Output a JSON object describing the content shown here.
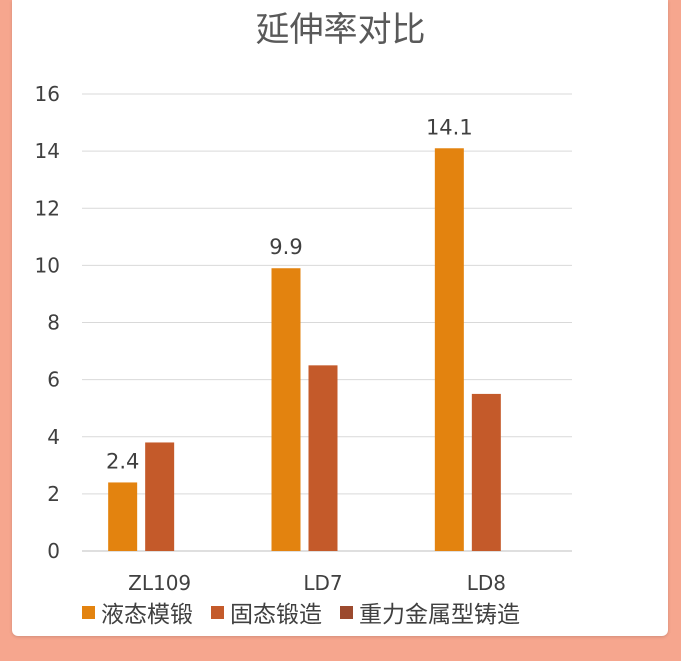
{
  "chart_data": {
    "type": "bar",
    "title": "延伸率对比",
    "categories": [
      "ZL109",
      "LD7",
      "LD8"
    ],
    "series": [
      {
        "name": "液态模锻",
        "color": "#e3830f",
        "values": [
          2.4,
          9.9,
          14.1
        ],
        "data_labels": [
          "2.4",
          "9.9",
          "14.1"
        ]
      },
      {
        "name": "固态锻造",
        "color": "#c45a2a",
        "values": [
          3.8,
          6.5,
          5.5
        ]
      },
      {
        "name": "重力金属型铸造",
        "color": "#9c4a2e",
        "values": [
          null,
          null,
          null
        ]
      }
    ],
    "ylim": [
      0,
      16
    ],
    "yticks": [
      0,
      2,
      4,
      6,
      8,
      10,
      12,
      14,
      16
    ],
    "grid": true,
    "legend_position": "bottom"
  }
}
